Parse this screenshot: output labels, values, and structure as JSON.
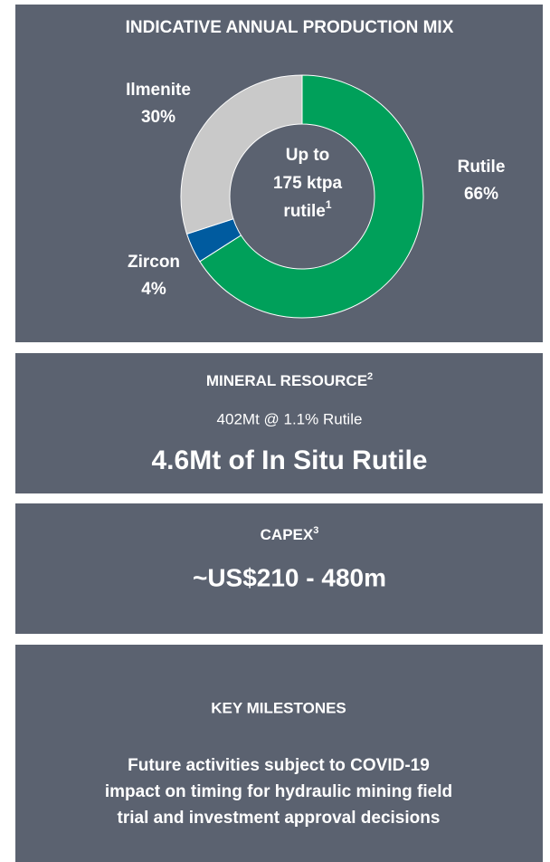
{
  "chart_data": {
    "type": "pie",
    "title": "INDICATIVE ANNUAL PRODUCTION MIX",
    "categories": [
      "Rutile",
      "Zircon",
      "Ilmenite"
    ],
    "values": [
      66,
      4,
      30
    ],
    "value_labels": [
      "66%",
      "4%",
      "30%"
    ],
    "colors": [
      "#00a05a",
      "#005b9f",
      "#c9c9c9"
    ],
    "center_text": [
      "Up to",
      "175 ktpa",
      "rutile"
    ],
    "center_footnote": "1"
  },
  "resource": {
    "title": "MINERAL RESOURCE",
    "footnote": "2",
    "grade": "402Mt @ 1.1% Rutile",
    "headline": "4.6Mt of In Situ Rutile"
  },
  "capex": {
    "title": "CAPEX",
    "footnote": "3",
    "headline": "~US$210 - 480m"
  },
  "milestones": {
    "title": "KEY MILESTONES",
    "body": [
      "Future activities subject to COVID-19",
      "impact on timing for hydraulic mining field",
      "trial and investment approval decisions"
    ]
  }
}
